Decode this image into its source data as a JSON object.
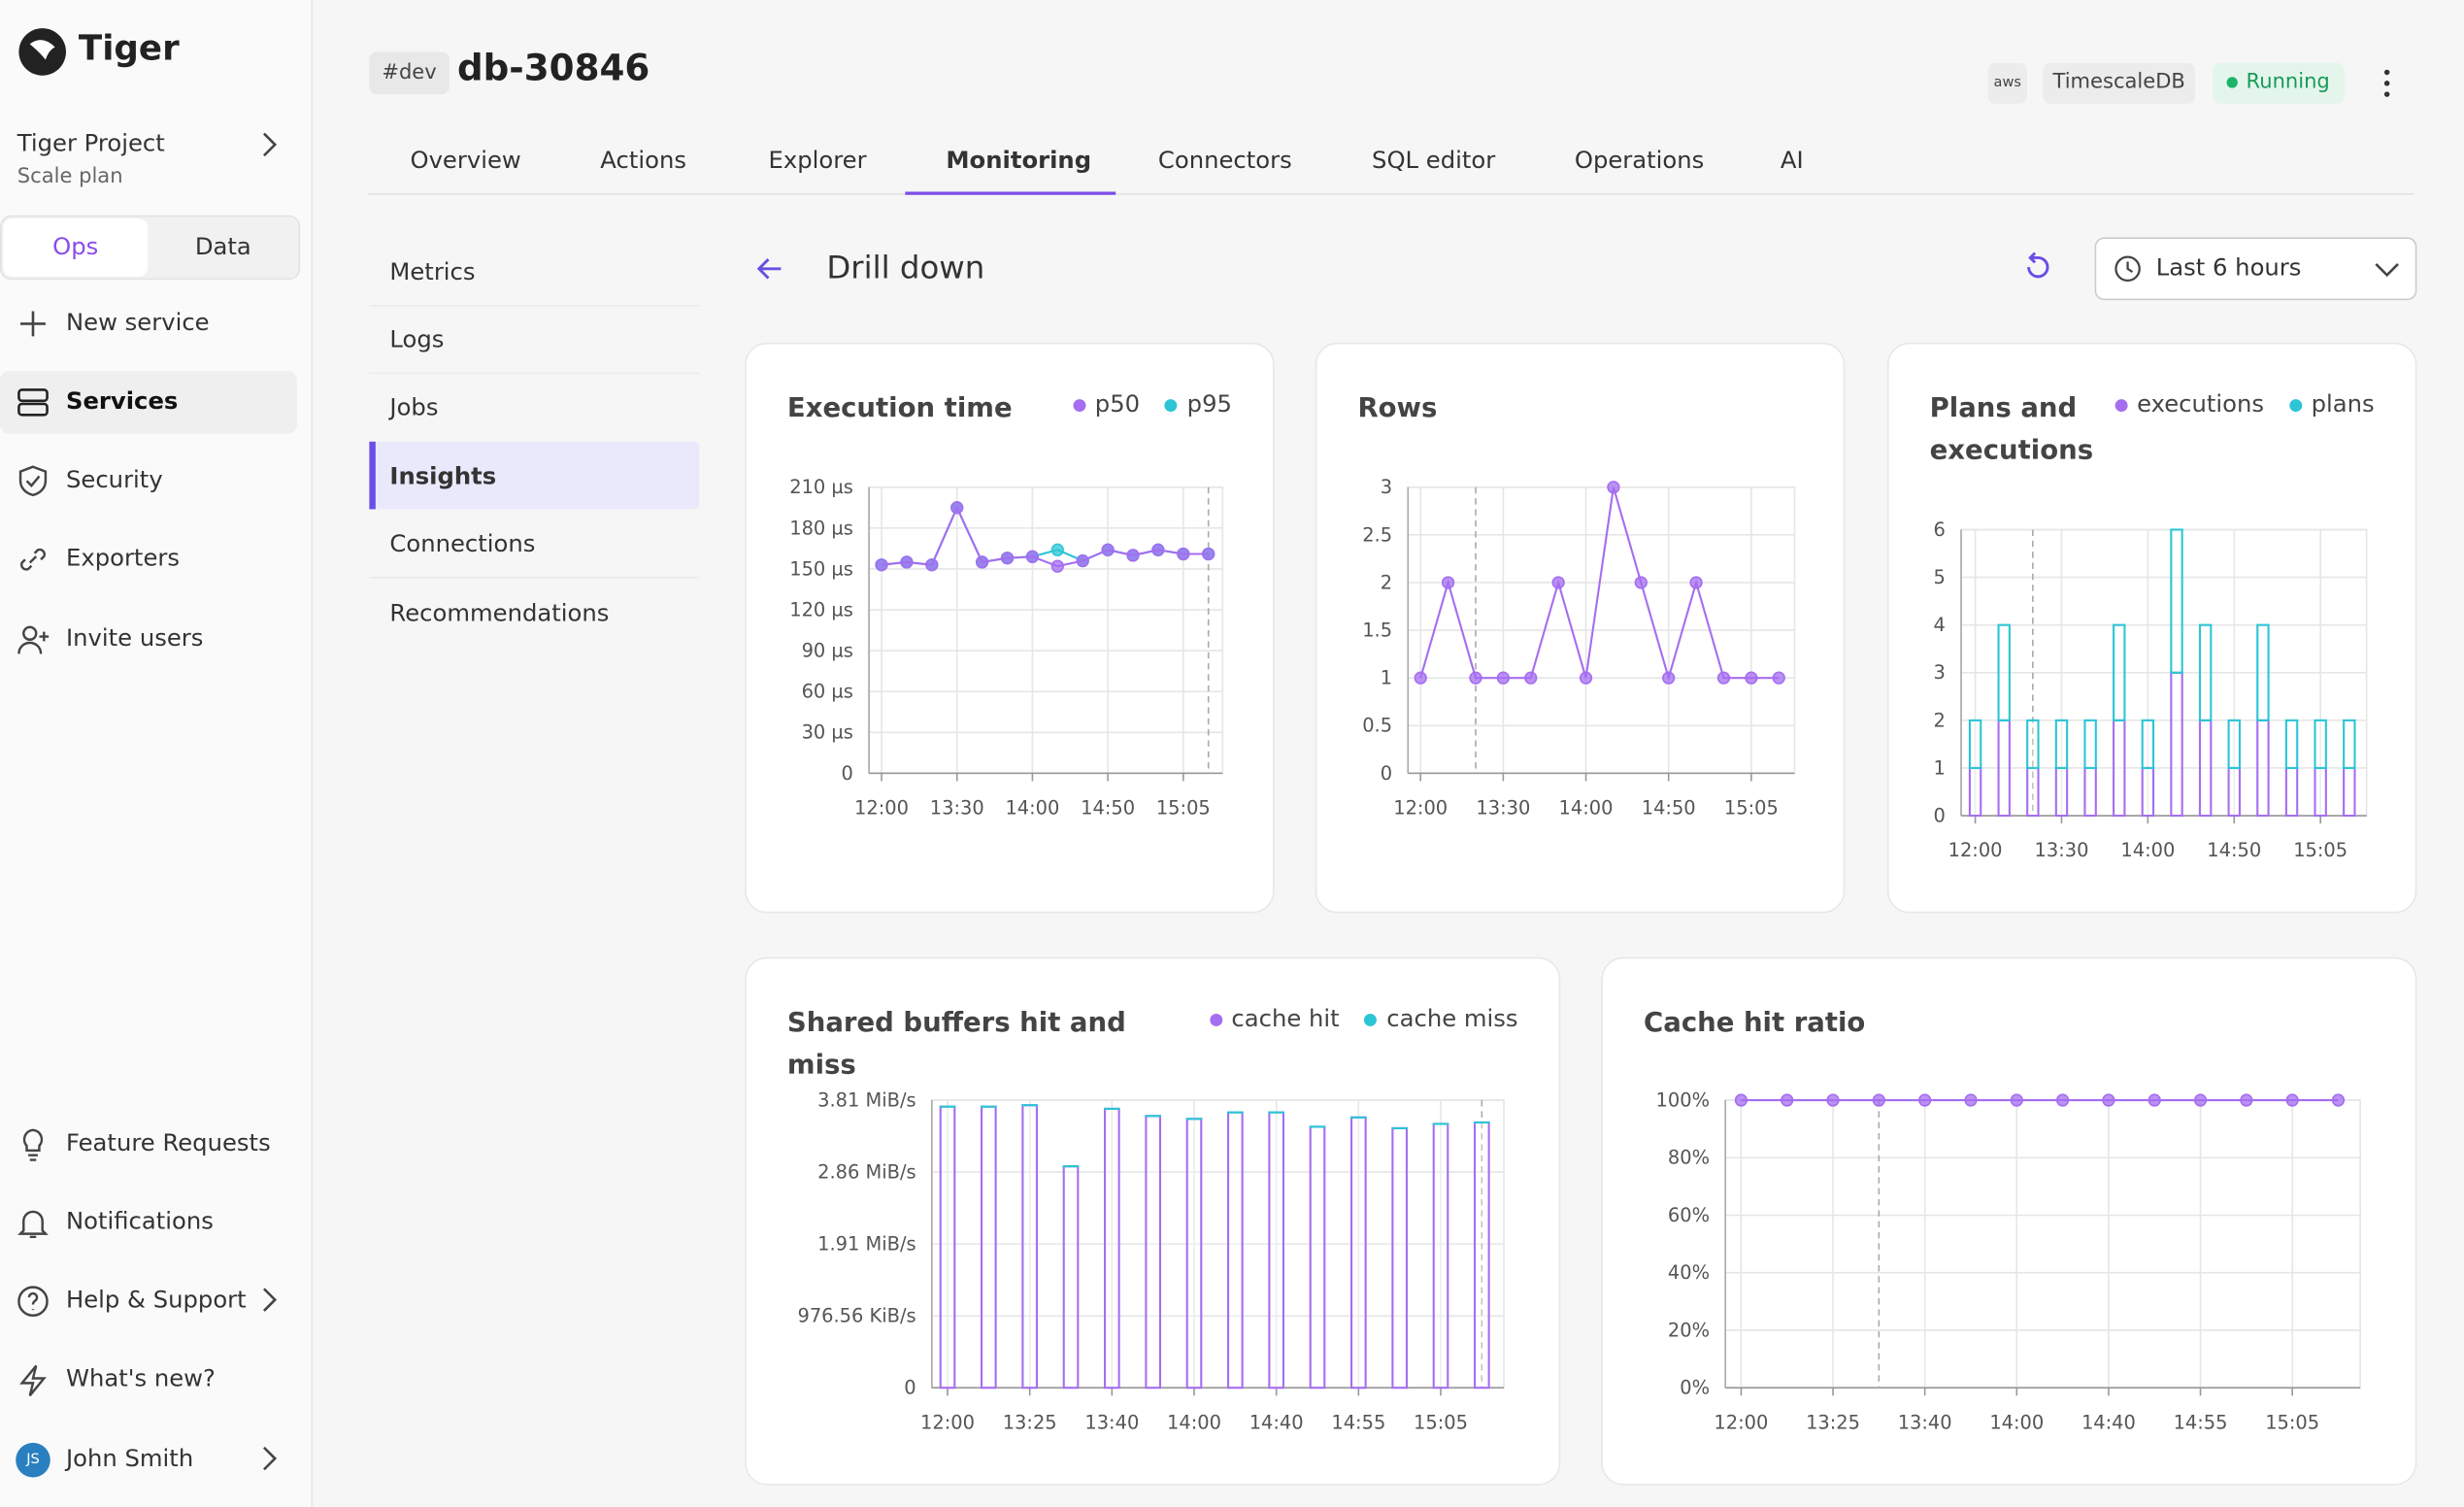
{
  "sidebar": {
    "brand": "Tiger",
    "project": "Tiger Project",
    "plan": "Scale plan",
    "toggle": [
      "Ops",
      "Data"
    ],
    "nav": [
      "New service",
      "Services",
      "Security",
      "Exporters",
      "Invite users"
    ],
    "footer": [
      "Feature Requests",
      "Notifications",
      "Help & Support",
      "What's new?"
    ],
    "user": {
      "initials": "JS",
      "name": "John Smith"
    }
  },
  "header": {
    "tag": "#dev",
    "service": "db-30846",
    "badges": [
      "aws",
      "TimescaleDB",
      "Running"
    ]
  },
  "tabs": [
    "Overview",
    "Actions",
    "Explorer",
    "Monitoring",
    "Connectors",
    "SQL editor",
    "Operations",
    "AI"
  ],
  "submenu": [
    "Metrics",
    "Logs",
    "Jobs",
    "Insights",
    "Connections",
    "Recommendations"
  ],
  "toolbar": {
    "title": "Drill down",
    "range": "Last 6 hours"
  },
  "chart_data": [
    {
      "type": "line",
      "title": "Execution time",
      "categories": [
        "12:00",
        null,
        null,
        "13:30",
        null,
        null,
        "14:00",
        null,
        null,
        "14:50",
        null,
        null,
        "15:05",
        null
      ],
      "series": [
        {
          "name": "p50",
          "color": "#a56ef0",
          "values": [
            153,
            155,
            153,
            195,
            155,
            158,
            159,
            152,
            156,
            164,
            160,
            164,
            161,
            161
          ]
        },
        {
          "name": "p95",
          "color": "#2cc5d6",
          "values": [
            153,
            155,
            153,
            195,
            155,
            158,
            159,
            164,
            156,
            164,
            160,
            164,
            161,
            161
          ]
        }
      ],
      "ylim": [
        0,
        210
      ],
      "yticks": [
        0,
        {
          "value": 30,
          "label": "30 µs"
        },
        {
          "value": 60,
          "label": "60 µs"
        },
        {
          "value": 90,
          "label": "90 µs"
        },
        {
          "value": 120,
          "label": "120 µs"
        },
        {
          "value": 150,
          "label": "150 µs"
        },
        {
          "value": 180,
          "label": "180 µs"
        },
        {
          "value": 210,
          "label": "210 µs"
        }
      ],
      "grid": true
    },
    {
      "type": "line",
      "title": "Rows",
      "categories": [
        "12:00",
        null,
        null,
        "13:30",
        null,
        null,
        "14:00",
        null,
        null,
        "14:50",
        null,
        null,
        "15:05",
        null
      ],
      "values": [
        1,
        2,
        1,
        1,
        1,
        2,
        1,
        3,
        2,
        1,
        2,
        1,
        1,
        1
      ],
      "color": "#a56ef0",
      "ylim": [
        0,
        3
      ],
      "yticks": [
        0,
        0.5,
        1,
        1.5,
        2,
        2.5,
        3
      ],
      "grid": true
    },
    {
      "type": "bar",
      "stacked": true,
      "title": "Plans and executions",
      "categories": [
        "12:00",
        null,
        null,
        "13:30",
        null,
        null,
        "14:00",
        null,
        null,
        "14:50",
        null,
        null,
        "15:05",
        null
      ],
      "series": [
        {
          "name": "executions",
          "color": "#a56ef0",
          "values": [
            1,
            2,
            1,
            1,
            1,
            2,
            1,
            3,
            2,
            1,
            2,
            1,
            1,
            1
          ]
        },
        {
          "name": "plans",
          "color": "#2cc5d6",
          "values": [
            1,
            2,
            1,
            1,
            1,
            2,
            1,
            3,
            2,
            1,
            2,
            1,
            1,
            1
          ]
        }
      ],
      "ylim": [
        0,
        6
      ],
      "yticks": [
        0,
        1,
        2,
        3,
        4,
        5,
        6
      ],
      "grid": true
    },
    {
      "type": "bar",
      "stacked": true,
      "title": "Shared buffers hit and miss",
      "categories": [
        "12:00",
        null,
        "13:25",
        null,
        "13:40",
        null,
        "14:00",
        null,
        "14:40",
        null,
        "14:55",
        null,
        "15:05",
        null
      ],
      "series": [
        {
          "name": "cache hit",
          "color": "#a56ef0",
          "values": [
            3910000,
            3910000,
            3930000,
            3080000,
            3880000,
            3780000,
            3740000,
            3830000,
            3830000,
            3630000,
            3760000,
            3610000,
            3670000,
            3690000
          ]
        },
        {
          "name": "cache miss",
          "color": "#2cc5d6",
          "values": [
            0,
            0,
            0,
            0,
            0,
            0,
            0,
            0,
            0,
            0,
            0,
            0,
            0,
            0
          ]
        }
      ],
      "ylim": [
        0,
        4000000
      ],
      "yticks": [
        0,
        {
          "value": 1000000,
          "label": "976.56 KiB/s"
        },
        {
          "value": 2000000,
          "label": "1.91 MiB/s"
        },
        {
          "value": 3000000,
          "label": "2.86 MiB/s"
        },
        {
          "value": 4000000,
          "label": "3.81 MiB/s"
        }
      ],
      "grid": true
    },
    {
      "type": "line",
      "title": "Cache hit ratio",
      "categories": [
        "12:00",
        null,
        "13:25",
        null,
        "13:40",
        null,
        "14:00",
        null,
        "14:40",
        null,
        "14:55",
        null,
        "15:05",
        null
      ],
      "values": [
        100,
        100,
        100,
        100,
        100,
        100,
        100,
        100,
        100,
        100,
        100,
        100,
        100,
        100
      ],
      "color": "#a56ef0",
      "ylim": [
        0,
        100
      ],
      "yticks": [
        {
          "value": 0,
          "label": "0%"
        },
        {
          "value": 20,
          "label": "20%"
        },
        {
          "value": 40,
          "label": "40%"
        },
        {
          "value": 60,
          "label": "60%"
        },
        {
          "value": 80,
          "label": "80%"
        },
        {
          "value": 100,
          "label": "100%"
        }
      ],
      "grid": true
    }
  ]
}
